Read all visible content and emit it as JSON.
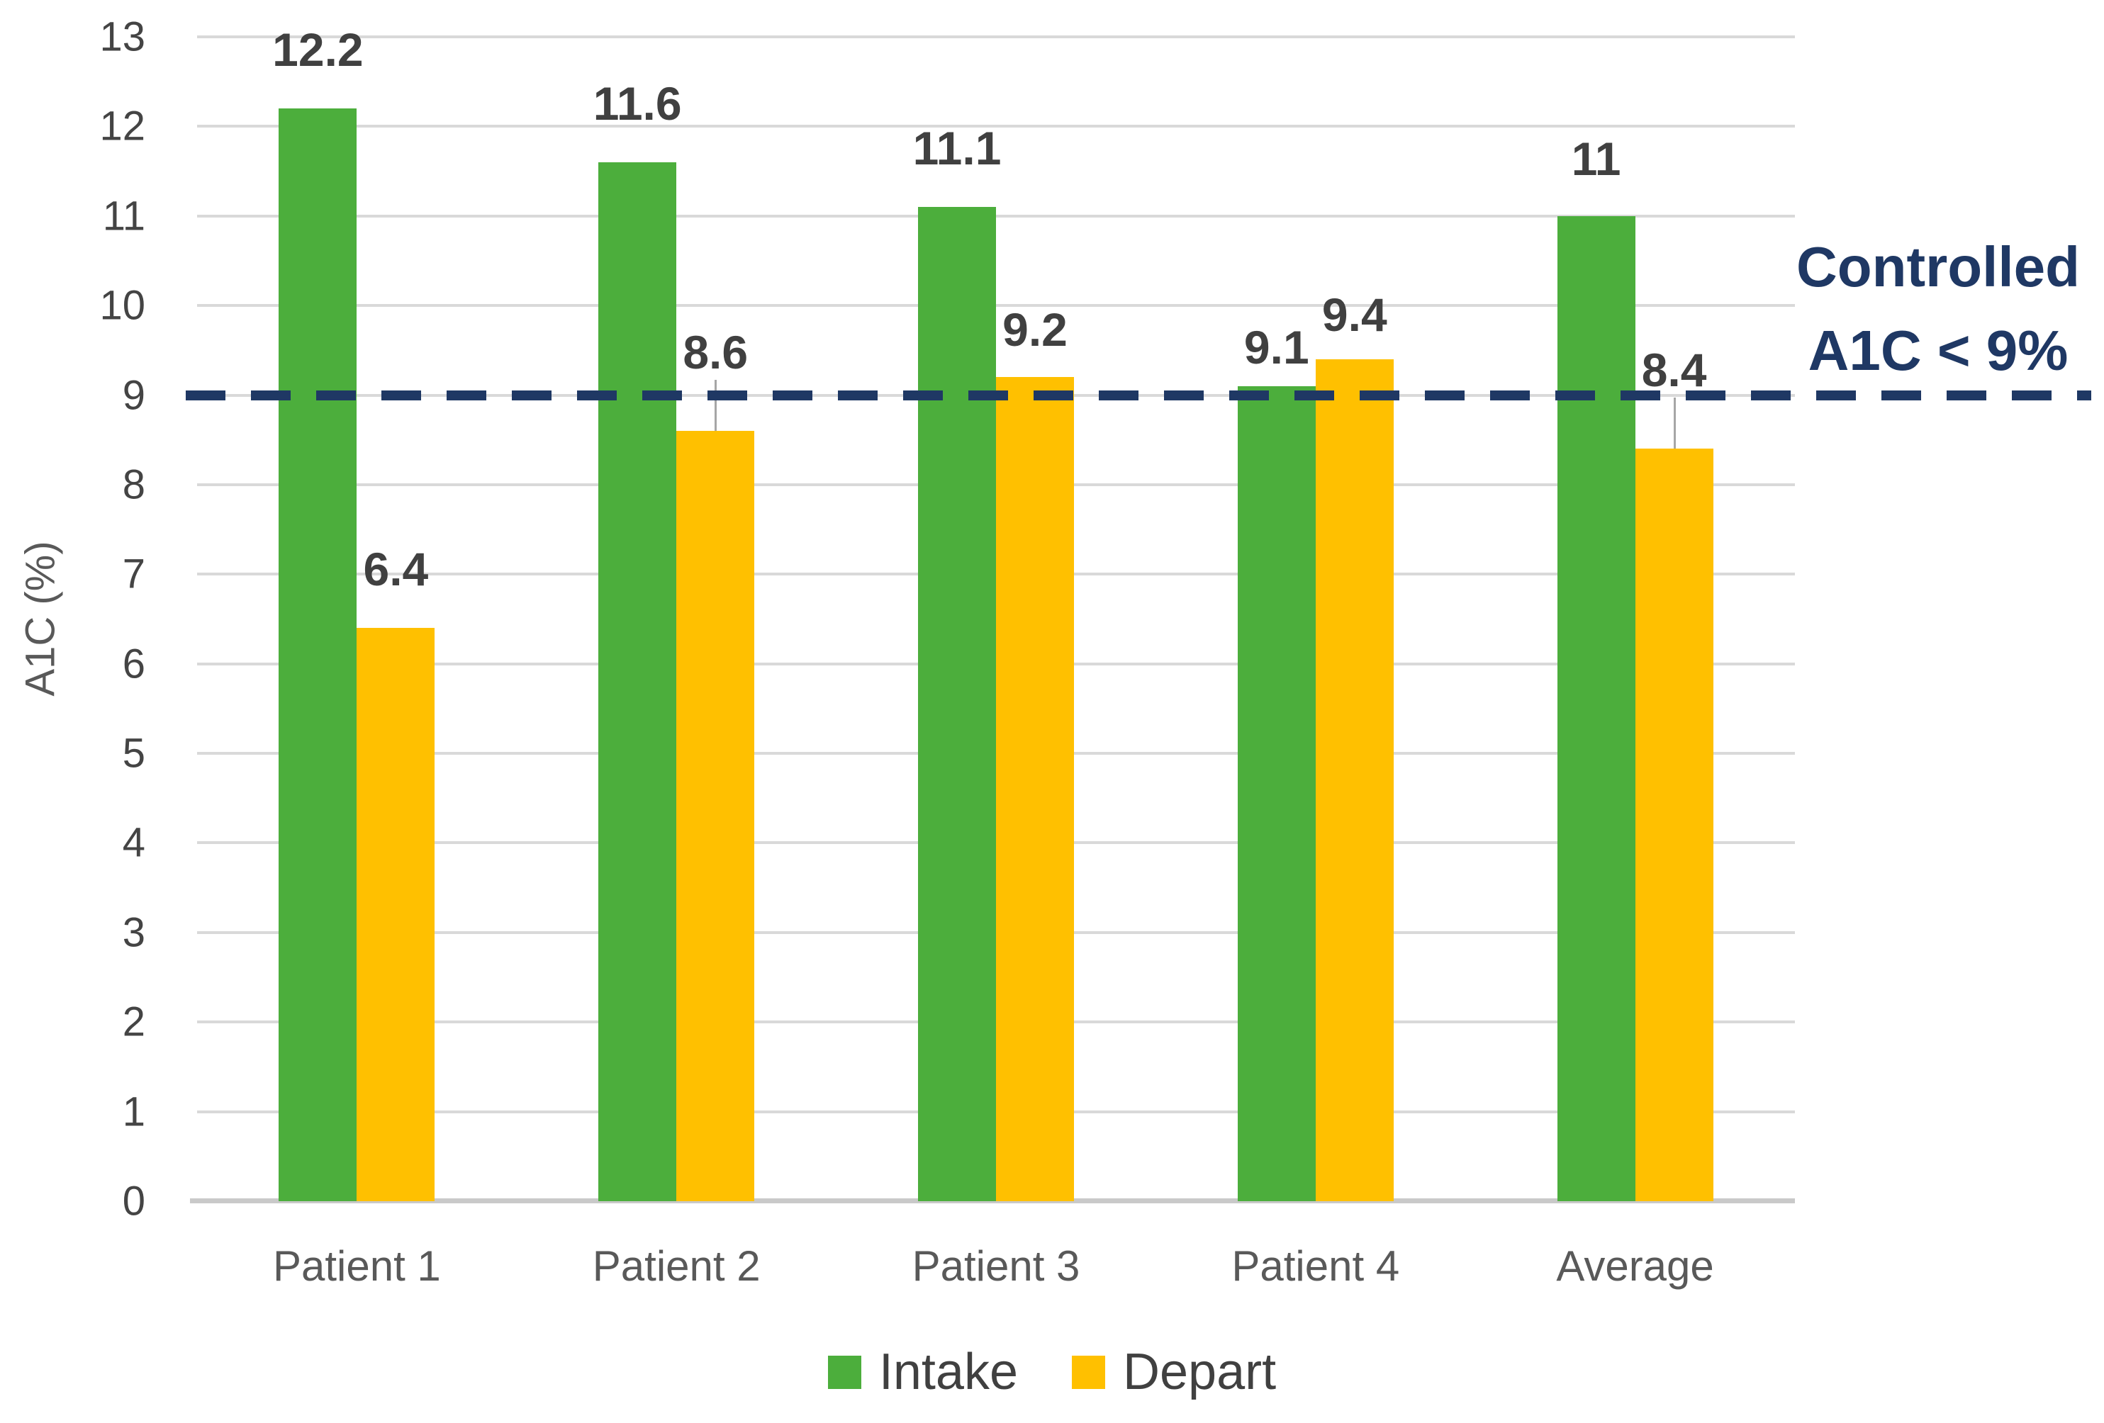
{
  "chart_data": {
    "type": "bar",
    "title": "",
    "categories": [
      "Patient 1",
      "Patient 2",
      "Patient 3",
      "Patient 4",
      "Average"
    ],
    "series": [
      {
        "name": "Intake",
        "color": "#4CAE3C",
        "values": [
          12.2,
          11.6,
          11.1,
          9.1,
          11
        ]
      },
      {
        "name": "Depart",
        "color": "#FFC000",
        "values": [
          6.4,
          8.6,
          9.2,
          9.4,
          8.4
        ]
      }
    ],
    "data_labels": [
      [
        "12.2",
        "11.6",
        "11.1",
        "9.1",
        "11"
      ],
      [
        "6.4",
        "8.6",
        "9.2",
        "9.4",
        "8.4"
      ]
    ],
    "xlabel": "",
    "ylabel": "A1C (%)",
    "ylim": [
      0,
      13
    ],
    "ytick_step": 1,
    "grid": true,
    "legend_position": "bottom",
    "reference_line": {
      "value": 9,
      "label": "Controlled A1C < 9%",
      "color": "#1F3864",
      "style": "dashed"
    },
    "label_layout": {
      "default_gap": 50,
      "overrides": [
        {
          "series": 0,
          "index": 3,
          "gap": 22
        },
        {
          "series": 0,
          "index": 4,
          "gap": 48
        },
        {
          "series": 1,
          "index": 2,
          "gap": 34
        },
        {
          "series": 1,
          "index": 3,
          "gap": 30
        },
        {
          "series": 1,
          "index": 1,
          "gap": 78,
          "leader": true
        },
        {
          "series": 1,
          "index": 4,
          "gap": 78,
          "leader": true
        }
      ]
    }
  },
  "annotation": {
    "line1": "Controlled",
    "line2": "A1C < 9%"
  },
  "y_axis": {
    "title": "A1C (%)"
  },
  "colors": {
    "intake": "#4CAE3C",
    "depart": "#FFC000",
    "reference_navy": "#1F3864",
    "gridline": "#D9D9D9",
    "axis_line": "#C9C9C9",
    "data_label": "#404040",
    "tick_label": "#444444",
    "category_label": "#595959"
  }
}
